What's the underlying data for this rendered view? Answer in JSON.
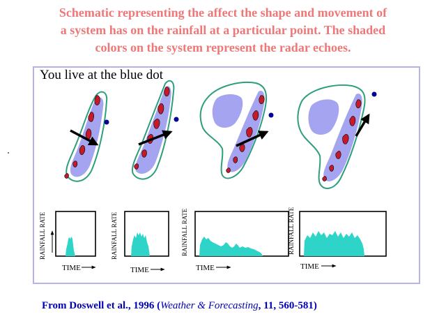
{
  "title": {
    "line1": "Schematic representing the affect the shape and movement of",
    "line2": "a system has on the rainfall at a particular point.  The shaded",
    "line3": "colors on the system represent the radar echoes."
  },
  "panel": {
    "caption": "You live at the blue dot"
  },
  "graphs": {
    "ylabel": "RAINFALL RATE",
    "xlabel": "TIME"
  },
  "source": {
    "prefix": "From Doswell et al., 1996 (",
    "journal": "Weather & Forecasting",
    "sep1": ", ",
    "volume": "11",
    "pages": ", 560-581)"
  },
  "colors": {
    "title": "#ee7777",
    "outline": "#2e9e7e",
    "echo_light": "#a4a4f0",
    "echo_core": "#c41a2a",
    "blue_dot": "#00008e",
    "rain": "#2ed4c8",
    "panel_border": "#b4b4ec",
    "source": "#0000b4"
  }
}
